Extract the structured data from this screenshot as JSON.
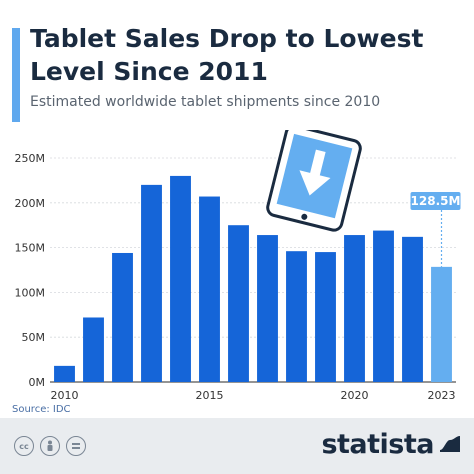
{
  "header": {
    "title": "Tablet Sales Drop to Lowest Level Since 2011",
    "subtitle": "Estimated worldwide tablet shipments since 2010"
  },
  "source": "Source: IDC",
  "brand": "statista",
  "colors": {
    "bar": "#1565d8",
    "highlight_bar": "#64aef0",
    "callout": "#64aef0",
    "title": "#1a2b40",
    "accent": "#5fa8ee"
  },
  "icons": [
    "tablet-download-icon",
    "cc-license-icon",
    "attribution-icon",
    "no-derivatives-icon",
    "statista-logo-icon"
  ],
  "chart_data": {
    "type": "bar",
    "title": "Tablet Sales Drop to Lowest Level Since 2011",
    "subtitle": "Estimated worldwide tablet shipments since 2010",
    "xlabel": "",
    "ylabel": "",
    "x": [
      2010,
      2011,
      2012,
      2013,
      2014,
      2015,
      2016,
      2017,
      2018,
      2019,
      2020,
      2021,
      2022,
      2023
    ],
    "values": [
      18,
      72,
      144,
      220,
      230,
      207,
      175,
      164,
      146,
      145,
      164,
      169,
      162,
      128.5
    ],
    "y_tick_values": [
      0,
      50,
      100,
      150,
      200,
      250
    ],
    "y_tick_labels": [
      "0M",
      "50M",
      "100M",
      "150M",
      "200M",
      "250M"
    ],
    "x_tick_labels": [
      "2010",
      "2015",
      "2020",
      "2023"
    ],
    "x_tick_years": [
      2010,
      2015,
      2020,
      2023
    ],
    "ylim": [
      0,
      250
    ],
    "highlight_index": 13,
    "highlight_label": "128.5M",
    "grid": true,
    "legend": "none"
  }
}
